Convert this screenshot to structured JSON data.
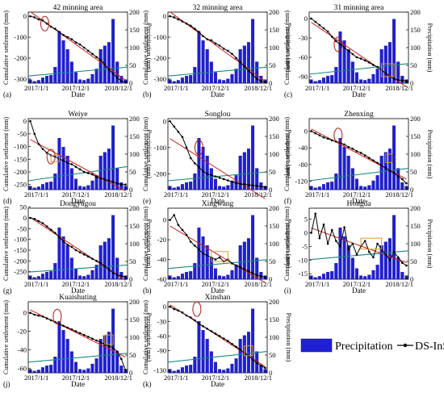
{
  "chart_data": {
    "type": "bar",
    "legend": {
      "placement": "bottom-right",
      "bar_label": "Precipitation",
      "line_label": "DS-InSAR"
    },
    "colors": {
      "bar": "#1f1fd6",
      "line": "#000000",
      "fit": "#d0201a",
      "trend": "#1b8a80",
      "ellipse": "#b01810",
      "box": "#e39a1c"
    },
    "x_tick_labels": [
      "2017/1/1",
      "2017/12/1",
      "2018/12/1"
    ],
    "months": [
      "2017-01",
      "2017-02",
      "2017-03",
      "2017-04",
      "2017-05",
      "2017-06",
      "2017-07",
      "2017-08",
      "2017-09",
      "2017-10",
      "2017-11",
      "2017-12",
      "2018-01",
      "2018-02",
      "2018-03",
      "2018-04",
      "2018-05",
      "2018-06",
      "2018-07",
      "2018-08",
      "2018-09",
      "2018-10",
      "2018-11",
      "2018-12"
    ],
    "panels": [
      {
        "id": "a",
        "letter": "(a)",
        "title": "42 minning area",
        "xlabel": "Date",
        "ylabel": "Cumulative settlement (mm)",
        "y2label": "Precipitation (mm)",
        "ylim": [
          -320,
          20
        ],
        "yticks": [
          0,
          -100,
          -200,
          -300
        ],
        "y2lim": [
          0,
          200
        ],
        "y2ticks": [
          0,
          50,
          100,
          150,
          200
        ],
        "precip": [
          10,
          5,
          8,
          15,
          20,
          22,
          45,
          145,
          120,
          95,
          60,
          30,
          10,
          8,
          12,
          25,
          40,
          95,
          105,
          115,
          180,
          60,
          20,
          10
        ],
        "settlement": [
          0,
          -5,
          -15,
          -20,
          -35,
          -50,
          -60,
          -75,
          -90,
          -100,
          -110,
          -125,
          -135,
          -150,
          -165,
          -180,
          -195,
          -210,
          -230,
          -255,
          -275,
          -295,
          -310,
          -315
        ],
        "trend": [
          20,
          45
        ],
        "ellipse": {
          "i": 3.5,
          "v": -35
        }
      },
      {
        "id": "b",
        "letter": "(b)",
        "title": "32 minning area",
        "xlabel": "Date",
        "ylabel": "Cumulative settlement (mm)",
        "y2label": "Precipitation (mm)",
        "ylim": [
          -320,
          20
        ],
        "yticks": [
          0,
          -100,
          -200,
          -300
        ],
        "y2lim": [
          0,
          200
        ],
        "y2ticks": [
          0,
          50,
          100,
          150,
          200
        ],
        "precip": [
          10,
          5,
          8,
          15,
          20,
          22,
          45,
          145,
          120,
          95,
          60,
          30,
          10,
          8,
          12,
          25,
          40,
          95,
          105,
          115,
          180,
          60,
          20,
          10
        ],
        "settlement": [
          0,
          -5,
          -15,
          -25,
          -35,
          -45,
          -60,
          -75,
          -95,
          -110,
          -115,
          -130,
          -140,
          -155,
          -165,
          -180,
          -200,
          -220,
          -240,
          -260,
          -280,
          -300,
          -310,
          -315
        ],
        "trend": [
          20,
          45
        ]
      },
      {
        "id": "c",
        "letter": "(c)",
        "title": "31 minning area",
        "xlabel": "Date",
        "ylabel": "Cumulative settlement (mm)",
        "y2label": "Precipitation (mm)",
        "ylim": [
          -100,
          10
        ],
        "yticks": [
          0,
          -30,
          -60,
          -90
        ],
        "y2lim": [
          0,
          200
        ],
        "y2ticks": [
          0,
          50,
          100,
          150,
          200
        ],
        "precip": [
          10,
          5,
          8,
          15,
          20,
          22,
          45,
          145,
          120,
          95,
          60,
          30,
          10,
          8,
          12,
          25,
          40,
          95,
          105,
          115,
          180,
          60,
          20,
          10
        ],
        "settlement": [
          0,
          -5,
          -10,
          -15,
          -20,
          -28,
          -35,
          -40,
          -45,
          -50,
          -55,
          -60,
          -62,
          -65,
          -68,
          -72,
          -75,
          -80,
          -85,
          -90,
          -93,
          -95,
          -96,
          -97
        ],
        "trend": [
          25,
          55
        ],
        "ellipse": {
          "i": 6.5,
          "v": -40
        },
        "box": {
          "i0": 17,
          "i1": 20,
          "v0": -70,
          "v1": -90
        }
      },
      {
        "id": "d",
        "letter": "(d)",
        "title": "Weiye",
        "xlabel": "Date",
        "ylabel": "Cumulative settlement (mm)",
        "y2label": "Precipitation (mm)",
        "ylim": [
          -270,
          10
        ],
        "yticks": [
          0,
          -50,
          -100,
          -150,
          -200,
          -250
        ],
        "y2lim": [
          0,
          200
        ],
        "y2ticks": [
          0,
          50,
          100,
          150,
          200
        ],
        "precip": [
          10,
          5,
          8,
          15,
          20,
          22,
          45,
          145,
          120,
          95,
          60,
          30,
          10,
          8,
          12,
          25,
          40,
          95,
          105,
          115,
          180,
          60,
          20,
          10
        ],
        "settlement": [
          0,
          -50,
          -90,
          -110,
          -125,
          -135,
          -140,
          -150,
          -155,
          -165,
          -170,
          -180,
          -190,
          -200,
          -205,
          -210,
          -220,
          -225,
          -230,
          -235,
          -240,
          -245,
          -250,
          -250
        ],
        "trend": [
          25,
          65
        ],
        "ellipse": {
          "i": 5,
          "v": -140
        },
        "box": {
          "i0": 5,
          "i1": 7,
          "v0": -135,
          "v1": -160
        }
      },
      {
        "id": "e",
        "letter": "(e)",
        "title": "Songlou",
        "xlabel": "Date",
        "ylabel": "Cumulative settlement (mm)",
        "y2label": "Precipitation (mm)",
        "ylim": [
          -260,
          10
        ],
        "yticks": [
          0,
          -100,
          -200
        ],
        "y2lim": [
          0,
          200
        ],
        "y2ticks": [
          0,
          50,
          100,
          150,
          200
        ],
        "precip": [
          10,
          5,
          8,
          15,
          20,
          22,
          45,
          145,
          120,
          95,
          60,
          30,
          10,
          8,
          12,
          25,
          40,
          95,
          105,
          115,
          180,
          60,
          20,
          10
        ],
        "settlement": [
          0,
          -20,
          -40,
          -60,
          -100,
          -140,
          -160,
          -175,
          -190,
          -200,
          -205,
          -210,
          -215,
          -220,
          -225,
          -230,
          -235,
          -238,
          -240,
          -242,
          -244,
          -246,
          -248,
          -250
        ],
        "trend": [
          25,
          50
        ],
        "ellipse": {
          "i": 7,
          "v": -100
        }
      },
      {
        "id": "f",
        "letter": "(f)",
        "title": "Zhenxing",
        "xlabel": "Date",
        "ylabel": "Cumulative settlement (mm)",
        "y2label": "Precipitation (mm)",
        "ylim": [
          -140,
          30
        ],
        "yticks": [
          0,
          -40,
          -80,
          -120
        ],
        "y2lim": [
          0,
          200
        ],
        "y2ticks": [
          0,
          50,
          100,
          150,
          200
        ],
        "precip": [
          10,
          5,
          8,
          15,
          20,
          22,
          45,
          145,
          120,
          95,
          60,
          30,
          10,
          8,
          12,
          25,
          40,
          95,
          105,
          115,
          180,
          60,
          20,
          10
        ],
        "settlement": [
          0,
          -5,
          -10,
          -15,
          -18,
          -22,
          -25,
          -28,
          -32,
          -38,
          -42,
          -48,
          -52,
          -58,
          -64,
          -70,
          -76,
          -82,
          -88,
          -95,
          -100,
          -108,
          -115,
          -125
        ],
        "trend": [
          25,
          60
        ],
        "ellipse": {
          "i": 6.5,
          "v": -10
        },
        "box": {
          "i0": 18,
          "i1": 19.5,
          "v0": -55,
          "v1": -75
        }
      },
      {
        "id": "g",
        "letter": "(g)",
        "title": "Dongyugou",
        "xlabel": "Date",
        "ylabel": "Cumulative settlement (mm)",
        "y2label": "Precipitation (mm)",
        "ylim": [
          -285,
          45
        ],
        "yticks": [
          50,
          0,
          -50,
          -100,
          -150,
          -200,
          -250
        ],
        "y2lim": [
          0,
          200
        ],
        "y2ticks": [
          0,
          50,
          100,
          150,
          200
        ],
        "precip": [
          10,
          5,
          8,
          15,
          20,
          22,
          45,
          145,
          120,
          95,
          60,
          30,
          10,
          8,
          12,
          25,
          40,
          95,
          105,
          115,
          180,
          60,
          20,
          10
        ],
        "settlement": [
          0,
          -5,
          -15,
          -25,
          -40,
          -55,
          -70,
          -90,
          -110,
          -125,
          -135,
          -150,
          -160,
          -170,
          -180,
          -190,
          -200,
          -210,
          -225,
          -240,
          -255,
          -265,
          -270,
          -275
        ],
        "trend": [
          20,
          40
        ]
      },
      {
        "id": "h",
        "letter": "(h)",
        "title": "Xingwang",
        "xlabel": "Date",
        "ylabel": "Cumulative settlement (mm)",
        "y2label": "Precipitation (mm)",
        "ylim": [
          -60,
          12
        ],
        "yticks": [
          0,
          -20,
          -40,
          -60
        ],
        "y2lim": [
          0,
          200
        ],
        "y2ticks": [
          0,
          50,
          100,
          150,
          200
        ],
        "precip": [
          10,
          5,
          8,
          15,
          20,
          22,
          45,
          145,
          120,
          95,
          60,
          30,
          10,
          8,
          12,
          25,
          40,
          95,
          105,
          115,
          180,
          60,
          20,
          10
        ],
        "settlement": [
          0,
          5,
          -5,
          -10,
          -15,
          -22,
          -26,
          -30,
          -34,
          -36,
          -38,
          -40,
          -38,
          -42,
          -40,
          -44,
          -46,
          -48,
          -50,
          -52,
          -54,
          -56,
          -57,
          -58
        ],
        "trend": [
          30,
          55
        ],
        "box": {
          "i0": 10,
          "i1": 14,
          "v0": -32,
          "v1": -42
        }
      },
      {
        "id": "i",
        "letter": "(i)",
        "title": "Hongda",
        "xlabel": "Date",
        "ylabel": "Cumulative settlement (mm)",
        "y2label": "Precipitation (mm)",
        "ylim": [
          -17,
          9
        ],
        "yticks": [
          5,
          0,
          -5,
          -10,
          -15
        ],
        "y2lim": [
          0,
          200
        ],
        "y2ticks": [
          0,
          50,
          100,
          150,
          200
        ],
        "precip": [
          10,
          5,
          8,
          15,
          20,
          22,
          45,
          145,
          120,
          95,
          60,
          30,
          10,
          8,
          12,
          25,
          40,
          95,
          105,
          115,
          180,
          60,
          20,
          10
        ],
        "settlement": [
          0,
          7,
          -2,
          3,
          -4,
          1,
          -3,
          -5,
          2,
          -6,
          -4,
          -8,
          -5,
          -3,
          -7,
          -9,
          -4,
          -6,
          -8,
          -10,
          -7,
          -9,
          -11,
          -12
        ],
        "trend": [
          55,
          80
        ],
        "box": {
          "i0": 12,
          "i1": 17,
          "v0": -2,
          "v1": -6
        }
      },
      {
        "id": "j",
        "letter": "(j)",
        "title": "Kuaishuting",
        "xlabel": "Date",
        "ylabel": "Cumulative settlement (mm)",
        "y2label": "Precipitation (mm)",
        "ylim": [
          -65,
          12
        ],
        "yticks": [
          0,
          -20,
          -40,
          -60
        ],
        "y2lim": [
          0,
          200
        ],
        "y2ticks": [
          0,
          50,
          100,
          150,
          200
        ],
        "precip": [
          10,
          5,
          8,
          15,
          20,
          22,
          45,
          145,
          120,
          95,
          60,
          30,
          10,
          8,
          12,
          25,
          40,
          95,
          105,
          115,
          180,
          60,
          20,
          10
        ],
        "settlement": [
          0,
          -2,
          -3,
          -4,
          -6,
          -8,
          -10,
          -12,
          -14,
          -16,
          -18,
          -20,
          -22,
          -24,
          -26,
          -28,
          -30,
          -32,
          -34,
          -36,
          -38,
          -42,
          -50,
          -62
        ],
        "trend": [
          30,
          55
        ],
        "ellipse": {
          "i": 6.5,
          "v": -4
        },
        "box": {
          "i0": 18,
          "i1": 20,
          "v0": -24,
          "v1": -34
        }
      },
      {
        "id": "k",
        "letter": "(k)",
        "title": "Xinshan",
        "xlabel": "Date",
        "ylabel": "Cumulative settlement (mm)",
        "y2label": "Precipitation (mm)",
        "ylim": [
          -135,
          10
        ],
        "yticks": [
          0,
          -30,
          -60,
          -90,
          -130
        ],
        "y2lim": [
          0,
          200
        ],
        "y2ticks": [
          0,
          50,
          100,
          150,
          200
        ],
        "precip": [
          10,
          5,
          8,
          15,
          20,
          22,
          45,
          145,
          120,
          95,
          60,
          30,
          10,
          8,
          12,
          25,
          40,
          95,
          105,
          115,
          180,
          60,
          20,
          10
        ],
        "settlement": [
          0,
          -5,
          -8,
          -12,
          -18,
          -22,
          -28,
          -35,
          -40,
          -45,
          -50,
          -55,
          -60,
          -65,
          -70,
          -76,
          -82,
          -88,
          -95,
          -100,
          -108,
          -115,
          -120,
          -125
        ],
        "trend": [
          30,
          60
        ],
        "ellipse": {
          "i": 6.5,
          "v": -5
        },
        "box": {
          "i0": 18,
          "i1": 20,
          "v0": -80,
          "v1": -100
        }
      }
    ]
  }
}
